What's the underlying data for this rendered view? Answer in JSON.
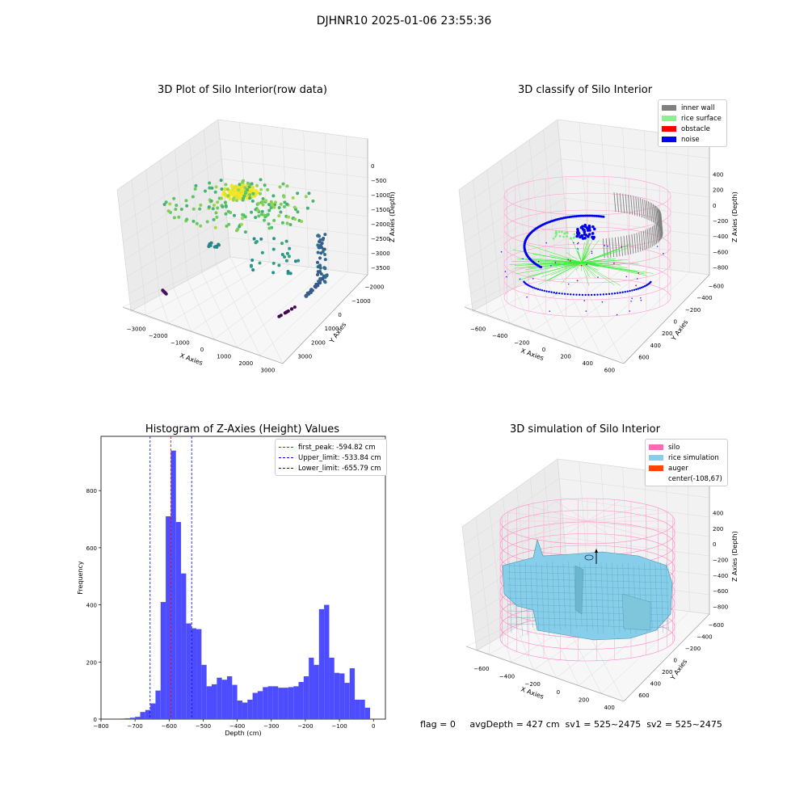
{
  "suptitle": "DJHNR10 2025-01-06 23:55:36",
  "status_line": "flag = 0     avgDepth = 427 cm  sv1 = 525~2475  sv2 = 525~2475",
  "colors": {
    "hist": "#4d4dff",
    "first_peak": "#ff0000",
    "limits": "#0000ff",
    "silo": "#ff69b4",
    "rice_sim": "#87ceeb",
    "auger": "#ff4500",
    "inner_wall": "#808080",
    "rice_surface": "#90ee90",
    "obstacle": "#ff0000",
    "noise": "#0000ff"
  },
  "chart_data": [
    {
      "type": "scatter3d",
      "title": "3D Plot of Silo Interior(row data)",
      "xlabel": "X Axies",
      "ylabel": "Y Axies",
      "zlabel": "Z Axies (Depth)",
      "x_ticks": [
        "−3000",
        "−2000",
        "−1000",
        "0",
        "1000",
        "2000",
        "3000"
      ],
      "y_ticks": [
        "3000",
        "2000",
        "1000",
        "0",
        "−1000",
        "−2000"
      ],
      "z_ticks": [
        "0",
        "−500",
        "−1000",
        "−1500",
        "−2000",
        "−2500",
        "−3000",
        "−3500"
      ],
      "colormap": "viridis"
    },
    {
      "type": "scatter3d",
      "title": "3D classify of Silo Interior",
      "xlabel": "X Axies",
      "ylabel": "Y Axies",
      "zlabel": "Z Axies (Depth)",
      "x_ticks": [
        "−600",
        "−400",
        "−200",
        "0",
        "200",
        "400",
        "600"
      ],
      "y_ticks": [
        "600",
        "400",
        "200",
        "0",
        "−200",
        "−400",
        "−600"
      ],
      "z_ticks": [
        "400",
        "200",
        "0",
        "−200",
        "−400",
        "−600",
        "−800"
      ],
      "legend": [
        "inner wall",
        "rice surface",
        "obstacle",
        "noise"
      ]
    },
    {
      "type": "bar",
      "title": "Histogram of Z-Axies (Height) Values",
      "xlabel": "Depth (cm)",
      "ylabel": "Frequency",
      "xlim": [
        -800,
        35
      ],
      "ylim": [
        0,
        990
      ],
      "x_ticks": [
        -800,
        -700,
        -600,
        -500,
        -400,
        -300,
        -200,
        -100,
        0
      ],
      "y_ticks": [
        0,
        200,
        400,
        600,
        800
      ],
      "bin_width": 15,
      "bin_starts": [
        -745,
        -730,
        -715,
        -700,
        -685,
        -670,
        -655,
        -640,
        -625,
        -610,
        -595,
        -580,
        -565,
        -550,
        -535,
        -520,
        -505,
        -490,
        -475,
        -460,
        -445,
        -430,
        -415,
        -400,
        -385,
        -370,
        -355,
        -340,
        -325,
        -310,
        -295,
        -280,
        -265,
        -250,
        -235,
        -220,
        -205,
        -190,
        -175,
        -160,
        -145,
        -130,
        -115,
        -100,
        -85,
        -70,
        -55,
        -40,
        -25,
        -10
      ],
      "values": [
        2,
        3,
        5,
        8,
        25,
        32,
        55,
        100,
        410,
        710,
        940,
        690,
        510,
        335,
        318,
        315,
        190,
        115,
        122,
        145,
        138,
        150,
        120,
        65,
        58,
        68,
        92,
        98,
        112,
        115,
        115,
        110,
        110,
        112,
        115,
        130,
        150,
        215,
        190,
        385,
        400,
        215,
        162,
        160,
        127,
        178,
        68,
        68,
        40,
        0
      ],
      "lines": [
        {
          "name": "first_peak: -594.82 cm",
          "x": -594.82,
          "style": "red-dashed"
        },
        {
          "name": "Upper_limit: -533.84 cm",
          "x": -533.84,
          "style": "blue-dashed"
        },
        {
          "name": "Lower_limit: -655.79 cm",
          "x": -655.79,
          "style": "blue-dashed"
        }
      ],
      "legend_position": "upper right"
    },
    {
      "type": "surface3d",
      "title": "3D simulation of Silo Interior",
      "xlabel": "X Axies",
      "ylabel": "Y Axies",
      "zlabel": "Z Axies (Depth)",
      "x_ticks": [
        "−600",
        "−400",
        "−200",
        "0",
        "200",
        "400"
      ],
      "y_ticks": [
        "600",
        "400",
        "200",
        "0",
        "−200",
        "−400",
        "−600"
      ],
      "z_ticks": [
        "400",
        "200",
        "0",
        "−200",
        "−400",
        "−600",
        "−800"
      ],
      "legend": [
        "silo",
        "rice simulation",
        "auger",
        "center(-108,67)"
      ]
    }
  ]
}
